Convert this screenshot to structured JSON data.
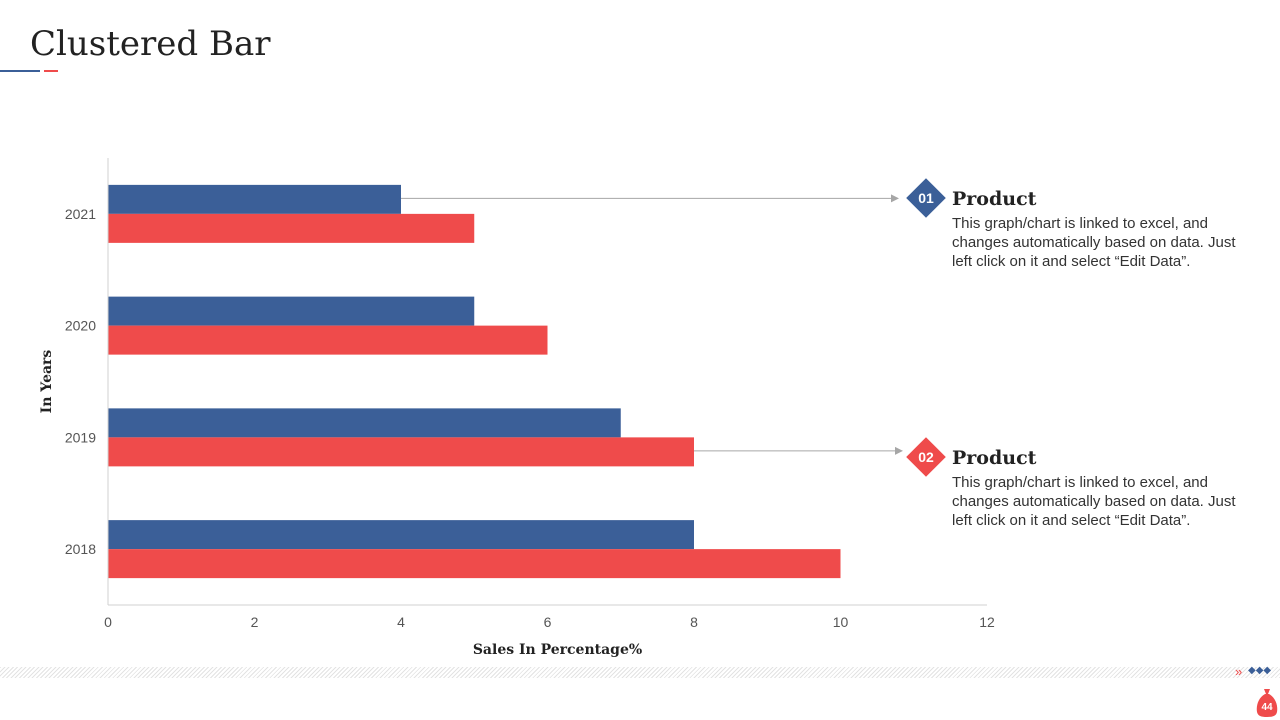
{
  "slide": {
    "title": "Clustered Bar",
    "page_number": "44"
  },
  "colors": {
    "series_blue": "#3b5f98",
    "series_red": "#ef4b4b"
  },
  "callouts": [
    {
      "number": "01",
      "title": "Product",
      "text": "This graph/chart is linked to excel, and changes automatically based on data. Just left click on it and select “Edit Data”."
    },
    {
      "number": "02",
      "title": "Product",
      "text": "This graph/chart is linked to excel, and changes automatically based on data. Just left click on it and select “Edit Data”."
    }
  ],
  "chart_data": {
    "type": "bar",
    "orientation": "horizontal",
    "title": "Clustered Bar",
    "categories": [
      "2021",
      "2020",
      "2019",
      "2018"
    ],
    "series": [
      {
        "name": "Product 01",
        "color": "#3b5f98",
        "values": [
          4,
          5,
          7,
          8
        ]
      },
      {
        "name": "Product 02",
        "color": "#ef4b4b",
        "values": [
          5,
          6,
          8,
          10
        ]
      }
    ],
    "xlabel": "Sales In Percentage%",
    "ylabel": "In Years",
    "xlim": [
      0,
      12
    ],
    "xticks": [
      0,
      2,
      4,
      6,
      8,
      10,
      12
    ],
    "grid": false
  }
}
